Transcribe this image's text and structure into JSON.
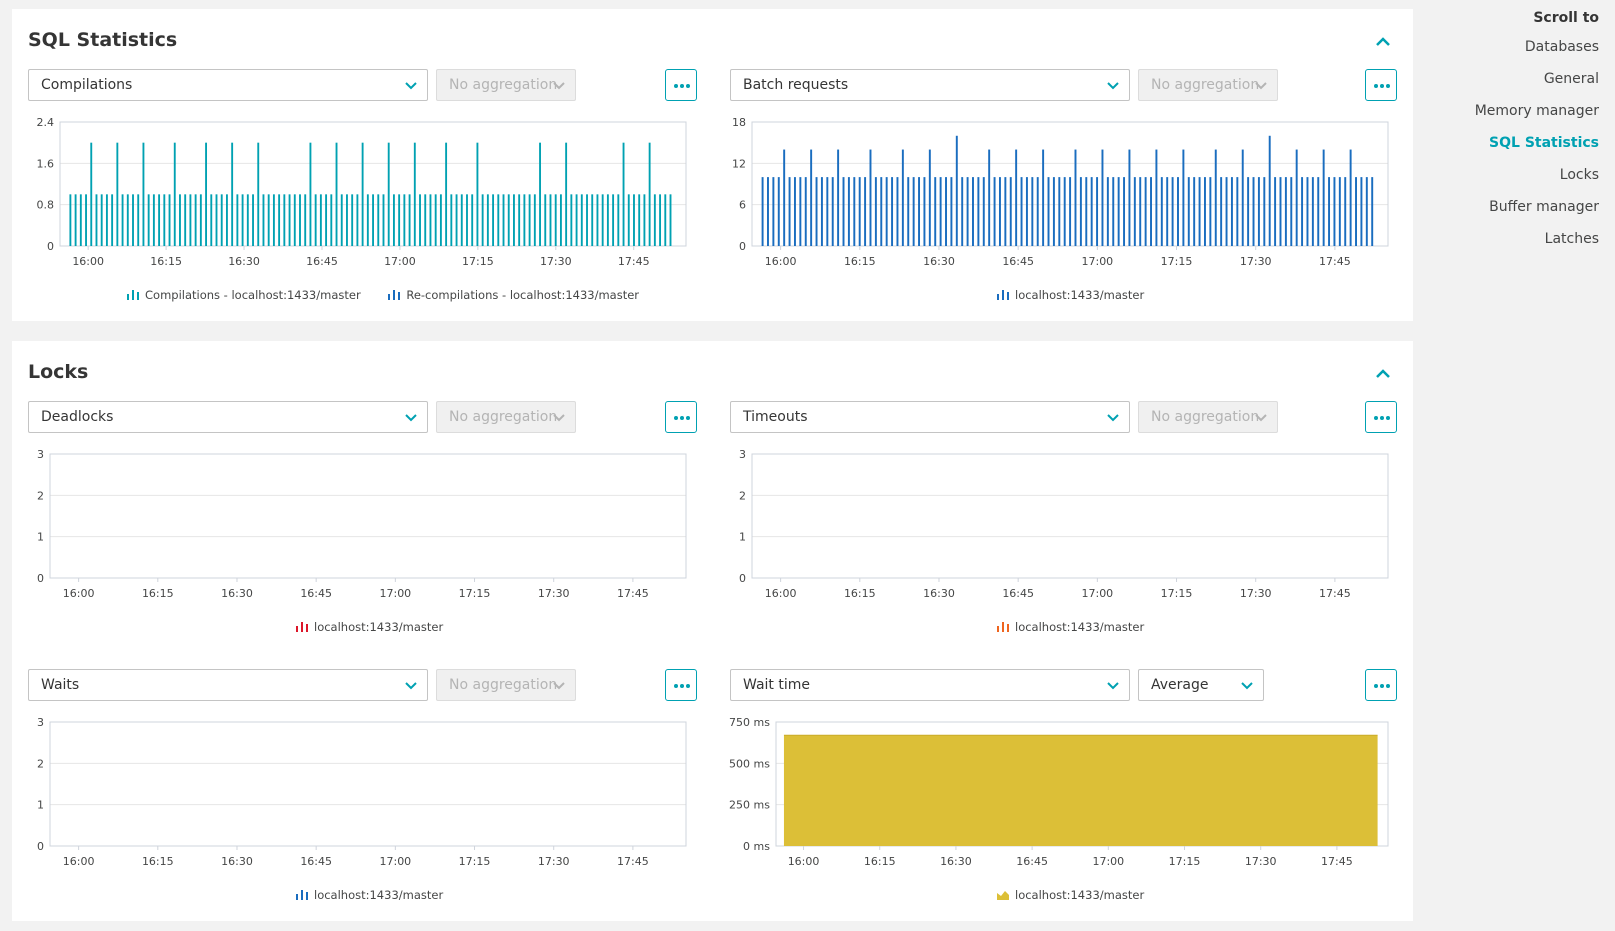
{
  "colors": {
    "teal": "#00a1b2",
    "blue": "#1a6dbf",
    "red": "#dc172a",
    "orange": "#ef651f",
    "yellow": "#dcbf37"
  },
  "sql_panel": {
    "title": "SQL Statistics",
    "left": {
      "metric": "Compilations",
      "aggregation": "No aggregation",
      "legend": [
        "Compilations - localhost:1433/master",
        "Re-compilations - localhost:1433/master"
      ]
    },
    "right": {
      "metric": "Batch requests",
      "aggregation": "No aggregation",
      "legend": [
        "localhost:1433/master"
      ]
    }
  },
  "locks_panel": {
    "title": "Locks",
    "deadlocks": {
      "metric": "Deadlocks",
      "aggregation": "No aggregation",
      "legend": [
        "localhost:1433/master"
      ]
    },
    "timeouts": {
      "metric": "Timeouts",
      "aggregation": "No aggregation",
      "legend": [
        "localhost:1433/master"
      ]
    },
    "waits": {
      "metric": "Waits",
      "aggregation": "No aggregation",
      "legend": [
        "localhost:1433/master"
      ]
    },
    "wait_time": {
      "metric": "Wait time",
      "aggregation": "Average",
      "legend": [
        "localhost:1433/master"
      ]
    }
  },
  "nav": {
    "title": "Scroll to",
    "items": [
      "Databases",
      "General",
      "Memory manager",
      "SQL Statistics",
      "Locks",
      "Buffer manager",
      "Latches"
    ],
    "active": "SQL Statistics"
  },
  "chart_data": [
    {
      "id": "compilations",
      "type": "bar",
      "x_ticks": [
        "16:00",
        "16:15",
        "16:30",
        "16:45",
        "17:00",
        "17:15",
        "17:30",
        "17:45"
      ],
      "y_ticks": [
        "0",
        "0.8",
        "1.6",
        "2.4"
      ],
      "ylim": [
        0,
        2.4
      ],
      "series": [
        {
          "name": "Compilations - localhost:1433/master",
          "color": "#00a1b2",
          "values": [
            1,
            1,
            1,
            1,
            2,
            1,
            1,
            1,
            1,
            2,
            1,
            1,
            1,
            1,
            2,
            1,
            1,
            1,
            1,
            1,
            2,
            1,
            1,
            1,
            1,
            1,
            2,
            1,
            1,
            1,
            1,
            2,
            1,
            1,
            1,
            1,
            2,
            1,
            1,
            1,
            1,
            1,
            1,
            1,
            1,
            1,
            2,
            1,
            1,
            1,
            1,
            2,
            1,
            1,
            1,
            1,
            2,
            1,
            1,
            1,
            1,
            2,
            1,
            1,
            1,
            1,
            2,
            1,
            1,
            1,
            1,
            1,
            2,
            1,
            1,
            1,
            1,
            1,
            2,
            1,
            1,
            1,
            1,
            1,
            1,
            1,
            1,
            1,
            1,
            1,
            2,
            1,
            1,
            1,
            1,
            2,
            1,
            1,
            1,
            1,
            1,
            1,
            1,
            1,
            1,
            1,
            2,
            1,
            1,
            1,
            1,
            2,
            1,
            1,
            1,
            1
          ]
        },
        {
          "name": "Re-compilations - localhost:1433/master",
          "color": "#1a6dbf",
          "values": []
        }
      ]
    },
    {
      "id": "batch",
      "type": "bar",
      "x_ticks": [
        "16:00",
        "16:15",
        "16:30",
        "16:45",
        "17:00",
        "17:15",
        "17:30",
        "17:45"
      ],
      "y_ticks": [
        "0",
        "6",
        "12",
        "18"
      ],
      "ylim": [
        0,
        18
      ],
      "series": [
        {
          "name": "localhost:1433/master",
          "color": "#1a6dbf",
          "values": [
            10,
            10,
            10,
            10,
            14,
            10,
            10,
            10,
            10,
            14,
            10,
            10,
            10,
            10,
            14,
            10,
            10,
            10,
            10,
            10,
            14,
            10,
            10,
            10,
            10,
            10,
            14,
            10,
            10,
            10,
            10,
            14,
            10,
            10,
            10,
            10,
            16,
            10,
            10,
            10,
            10,
            10,
            14,
            10,
            10,
            10,
            10,
            14,
            10,
            10,
            10,
            10,
            14,
            10,
            10,
            10,
            10,
            10,
            14,
            10,
            10,
            10,
            10,
            14,
            10,
            10,
            10,
            10,
            14,
            10,
            10,
            10,
            10,
            14,
            10,
            10,
            10,
            10,
            14,
            10,
            10,
            10,
            10,
            10,
            14,
            10,
            10,
            10,
            10,
            14,
            10,
            10,
            10,
            10,
            16,
            10,
            10,
            10,
            10,
            14,
            10,
            10,
            10,
            10,
            14,
            10,
            10,
            10,
            10,
            14,
            10,
            10,
            10,
            10
          ]
        }
      ]
    },
    {
      "id": "deadlocks",
      "type": "bar",
      "x_ticks": [
        "16:00",
        "16:15",
        "16:30",
        "16:45",
        "17:00",
        "17:15",
        "17:30",
        "17:45"
      ],
      "y_ticks": [
        "0",
        "1",
        "2",
        "3"
      ],
      "ylim": [
        0,
        3
      ],
      "series": [
        {
          "name": "localhost:1433/master",
          "color": "#dc172a",
          "values": []
        }
      ]
    },
    {
      "id": "timeouts",
      "type": "bar",
      "x_ticks": [
        "16:00",
        "16:15",
        "16:30",
        "16:45",
        "17:00",
        "17:15",
        "17:30",
        "17:45"
      ],
      "y_ticks": [
        "0",
        "1",
        "2",
        "3"
      ],
      "ylim": [
        0,
        3
      ],
      "series": [
        {
          "name": "localhost:1433/master",
          "color": "#ef651f",
          "values": []
        }
      ]
    },
    {
      "id": "waits",
      "type": "bar",
      "x_ticks": [
        "16:00",
        "16:15",
        "16:30",
        "16:45",
        "17:00",
        "17:15",
        "17:30",
        "17:45"
      ],
      "y_ticks": [
        "0",
        "1",
        "2",
        "3"
      ],
      "ylim": [
        0,
        3
      ],
      "series": [
        {
          "name": "localhost:1433/master",
          "color": "#1a6dbf",
          "values": []
        }
      ]
    },
    {
      "id": "waittime",
      "type": "area",
      "x_ticks": [
        "16:00",
        "16:15",
        "16:30",
        "16:45",
        "17:00",
        "17:15",
        "17:30",
        "17:45"
      ],
      "y_ticks": [
        "0 ms",
        "250 ms",
        "500 ms",
        "750 ms"
      ],
      "ylim": [
        0,
        750
      ],
      "series": [
        {
          "name": "localhost:1433/master",
          "color": "#dcbf37",
          "values": [
            670,
            670
          ]
        }
      ]
    }
  ]
}
